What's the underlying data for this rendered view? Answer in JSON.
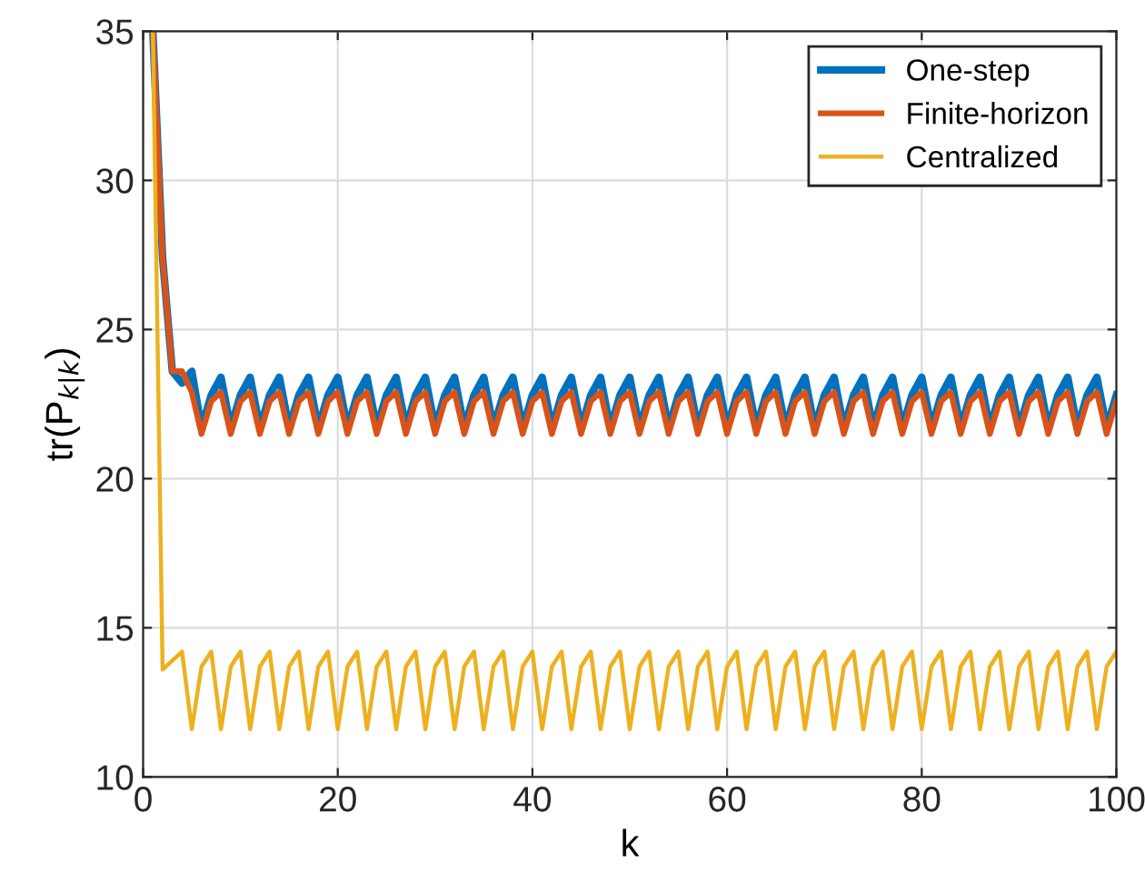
{
  "chart_data": {
    "type": "line",
    "xlabel": "k",
    "ylabel": "tr(P$_{k|k}$)",
    "xlim": [
      0,
      100
    ],
    "ylim": [
      10,
      35
    ],
    "xticks": [
      0,
      20,
      40,
      60,
      80,
      100
    ],
    "yticks": [
      10,
      15,
      20,
      25,
      30,
      35
    ],
    "grid": true,
    "legend": "top right",
    "marker": "none",
    "line_style": "solid",
    "x": [
      1,
      2,
      3,
      4,
      5,
      6,
      7,
      8,
      9,
      10,
      11,
      12,
      13,
      14,
      15,
      16,
      17,
      18,
      19,
      20,
      21,
      22,
      23,
      24,
      25,
      26,
      27,
      28,
      29,
      30,
      31,
      32,
      33,
      34,
      35,
      36,
      37,
      38,
      39,
      40,
      41,
      42,
      43,
      44,
      45,
      46,
      47,
      48,
      49,
      50,
      51,
      52,
      53,
      54,
      55,
      56,
      57,
      58,
      59,
      60,
      61,
      62,
      63,
      64,
      65,
      66,
      67,
      68,
      69,
      70,
      71,
      72,
      73,
      74,
      75,
      76,
      77,
      78,
      79,
      80,
      81,
      82,
      83,
      84,
      85,
      86,
      87,
      88,
      89,
      90,
      91,
      92,
      93,
      94,
      95,
      96,
      97,
      98,
      99,
      100
    ],
    "series": [
      {
        "name": "One-step",
        "color": "#0072bd",
        "values": [
          35,
          27.4,
          23.6,
          23.2,
          23.6,
          21.7,
          22.8,
          23.4,
          21.7,
          22.8,
          23.4,
          21.7,
          22.8,
          23.4,
          21.7,
          22.8,
          23.4,
          21.7,
          22.8,
          23.4,
          21.7,
          22.8,
          23.4,
          21.7,
          22.8,
          23.4,
          21.7,
          22.8,
          23.4,
          21.7,
          22.8,
          23.4,
          21.7,
          22.8,
          23.4,
          21.7,
          22.8,
          23.4,
          21.7,
          22.8,
          23.4,
          21.7,
          22.8,
          23.4,
          21.7,
          22.8,
          23.4,
          21.7,
          22.8,
          23.4,
          21.7,
          22.8,
          23.4,
          21.7,
          22.8,
          23.4,
          21.7,
          22.8,
          23.4,
          21.7,
          22.8,
          23.4,
          21.7,
          22.8,
          23.4,
          21.7,
          22.8,
          23.4,
          21.7,
          22.8,
          23.4,
          21.7,
          22.8,
          23.4,
          21.7,
          22.8,
          23.4,
          21.7,
          22.8,
          23.4,
          21.7,
          22.8,
          23.4,
          21.7,
          22.8,
          23.4,
          21.7,
          22.8,
          23.4,
          21.7,
          22.8,
          23.4,
          21.7,
          22.8,
          23.4,
          21.7,
          22.8,
          23.4,
          21.7,
          22.8
        ]
      },
      {
        "name": "Finite-horizon",
        "color": "#d95319",
        "values": [
          35,
          27.4,
          23.6,
          23.6,
          22.9,
          21.5,
          22.6,
          22.9,
          21.5,
          22.6,
          22.9,
          21.5,
          22.6,
          22.9,
          21.5,
          22.6,
          22.9,
          21.5,
          22.6,
          22.9,
          21.5,
          22.6,
          22.9,
          21.5,
          22.6,
          22.9,
          21.5,
          22.6,
          22.9,
          21.5,
          22.6,
          22.9,
          21.5,
          22.6,
          22.9,
          21.5,
          22.6,
          22.9,
          21.5,
          22.6,
          22.9,
          21.5,
          22.6,
          22.9,
          21.5,
          22.6,
          22.9,
          21.5,
          22.6,
          22.9,
          21.5,
          22.6,
          22.9,
          21.5,
          22.6,
          22.9,
          21.5,
          22.6,
          22.9,
          21.5,
          22.6,
          22.9,
          21.5,
          22.6,
          22.9,
          21.5,
          22.6,
          22.9,
          21.5,
          22.6,
          22.9,
          21.5,
          22.6,
          22.9,
          21.5,
          22.6,
          22.9,
          21.5,
          22.6,
          22.9,
          21.5,
          22.6,
          22.9,
          21.5,
          22.6,
          22.9,
          21.5,
          22.6,
          22.9,
          21.5,
          22.6,
          22.9,
          21.5,
          22.6,
          22.9,
          21.5,
          22.6,
          22.9,
          21.5,
          22.6
        ]
      },
      {
        "name": "Centralized",
        "color": "#edb120",
        "values": [
          35,
          13.6,
          13.9,
          14.2,
          11.6,
          13.7,
          14.2,
          11.6,
          13.7,
          14.2,
          11.6,
          13.7,
          14.2,
          11.6,
          13.7,
          14.2,
          11.6,
          13.7,
          14.2,
          11.6,
          13.7,
          14.2,
          11.6,
          13.7,
          14.2,
          11.6,
          13.7,
          14.2,
          11.6,
          13.7,
          14.2,
          11.6,
          13.7,
          14.2,
          11.6,
          13.7,
          14.2,
          11.6,
          13.7,
          14.2,
          11.6,
          13.7,
          14.2,
          11.6,
          13.7,
          14.2,
          11.6,
          13.7,
          14.2,
          11.6,
          13.7,
          14.2,
          11.6,
          13.7,
          14.2,
          11.6,
          13.7,
          14.2,
          11.6,
          13.7,
          14.2,
          11.6,
          13.7,
          14.2,
          11.6,
          13.7,
          14.2,
          11.6,
          13.7,
          14.2,
          11.6,
          13.7,
          14.2,
          11.6,
          13.7,
          14.2,
          11.6,
          13.7,
          14.2,
          11.6,
          13.7,
          14.2,
          11.6,
          13.7,
          14.2,
          11.6,
          13.7,
          14.2,
          11.6,
          13.7,
          14.2,
          11.6,
          13.7,
          14.2,
          11.6,
          13.7,
          14.2,
          11.6,
          13.7,
          14.2
        ]
      }
    ]
  }
}
